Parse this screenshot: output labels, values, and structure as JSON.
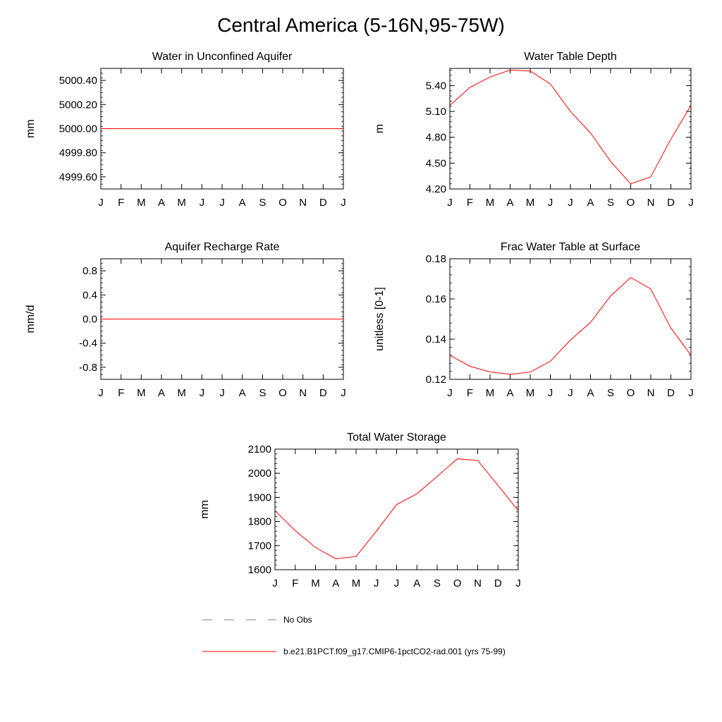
{
  "title": "Central America (5-16N,95-75W)",
  "legend": {
    "items": [
      {
        "label": "No Obs",
        "style": "dashed",
        "color": "#808080"
      },
      {
        "label": "b.e21.B1PCT.f09_g17.CMIP6-1pctCO2-rad.001 (yrs 75-99)",
        "style": "solid",
        "color": "#ff0000"
      }
    ]
  },
  "chart_data": [
    {
      "type": "line",
      "title": "Water in Unconfined Aquifer",
      "ylabel": "mm",
      "xlabel": "",
      "x": [
        "J",
        "F",
        "M",
        "A",
        "M",
        "J",
        "J",
        "A",
        "S",
        "O",
        "N",
        "D",
        "J"
      ],
      "ylim": [
        4999.5,
        5000.5
      ],
      "yticks": [
        4999.6,
        4999.8,
        5000.0,
        5000.2,
        5000.4
      ],
      "ytick_labels": [
        "4999.60",
        "4999.80",
        "5000.00",
        "5000.20",
        "5000.40"
      ],
      "series": [
        {
          "color": "#ff0000",
          "values": [
            5000,
            5000,
            5000,
            5000,
            5000,
            5000,
            5000,
            5000,
            5000,
            5000,
            5000,
            5000,
            5000
          ]
        }
      ]
    },
    {
      "type": "line",
      "title": "Water Table Depth",
      "ylabel": "m",
      "xlabel": "",
      "x": [
        "J",
        "F",
        "M",
        "A",
        "M",
        "J",
        "J",
        "A",
        "S",
        "O",
        "N",
        "D",
        "J"
      ],
      "ylim": [
        4.2,
        5.6
      ],
      "yticks": [
        4.2,
        4.5,
        4.8,
        5.1,
        5.4
      ],
      "ytick_labels": [
        "4.20",
        "4.50",
        "4.80",
        "5.10",
        "5.40"
      ],
      "series": [
        {
          "color": "#ff0000",
          "values": [
            5.17,
            5.38,
            5.5,
            5.58,
            5.57,
            5.42,
            5.1,
            4.85,
            4.52,
            4.26,
            4.34,
            4.78,
            5.17
          ]
        }
      ]
    },
    {
      "type": "line",
      "title": "Aquifer Recharge Rate",
      "ylabel": "mm/d",
      "xlabel": "",
      "x": [
        "J",
        "F",
        "M",
        "A",
        "M",
        "J",
        "J",
        "A",
        "S",
        "O",
        "N",
        "D",
        "J"
      ],
      "ylim": [
        -1.0,
        1.0
      ],
      "yticks": [
        -0.8,
        -0.4,
        0.0,
        0.4,
        0.8
      ],
      "ytick_labels": [
        "-0.8",
        "-0.4",
        "0.0",
        "0.4",
        "0.8"
      ],
      "series": [
        {
          "color": "#ff0000",
          "values": [
            0,
            0,
            0,
            0,
            0,
            0,
            0,
            0,
            0,
            0,
            0,
            0,
            0
          ]
        }
      ]
    },
    {
      "type": "line",
      "title": "Frac Water Table at Surface",
      "ylabel": "unitless [0-1]",
      "xlabel": "",
      "x": [
        "J",
        "F",
        "M",
        "A",
        "M",
        "J",
        "J",
        "A",
        "S",
        "O",
        "N",
        "D",
        "J"
      ],
      "ylim": [
        0.12,
        0.18
      ],
      "yticks": [
        0.12,
        0.14,
        0.16,
        0.18
      ],
      "ytick_labels": [
        "0.12",
        "0.14",
        "0.16",
        "0.18"
      ],
      "series": [
        {
          "color": "#ff0000",
          "values": [
            0.132,
            0.1265,
            0.1237,
            0.1225,
            0.1236,
            0.129,
            0.1395,
            0.1483,
            0.1615,
            0.1707,
            0.165,
            0.1455,
            0.132
          ]
        }
      ]
    },
    {
      "type": "line",
      "title": "Total Water Storage",
      "ylabel": "mm",
      "xlabel": "",
      "x": [
        "J",
        "F",
        "M",
        "A",
        "M",
        "J",
        "J",
        "A",
        "S",
        "O",
        "N",
        "D",
        "J"
      ],
      "ylim": [
        1600,
        2100
      ],
      "yticks": [
        1600,
        1700,
        1800,
        1900,
        2000,
        2100
      ],
      "ytick_labels": [
        "1600",
        "1700",
        "1800",
        "1900",
        "2000",
        "2100"
      ],
      "series": [
        {
          "color": "#ff0000",
          "values": [
            1845,
            1762,
            1692,
            1645,
            1655,
            1760,
            1870,
            1915,
            1987,
            2060,
            2053,
            1950,
            1845
          ]
        }
      ]
    }
  ]
}
